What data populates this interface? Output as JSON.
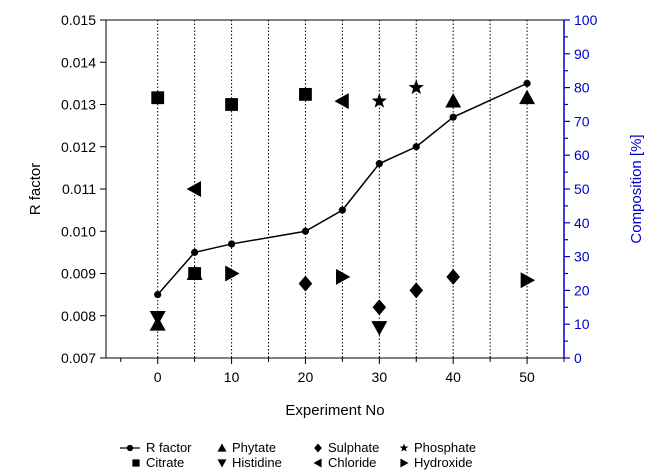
{
  "chart_data": {
    "type": "scatter",
    "xlabel": "Experiment No",
    "ylabel": "R factor",
    "y2label": "Composition [%]",
    "xlim": [
      -7,
      55
    ],
    "ylim": [
      0.007,
      0.015
    ],
    "y2lim": [
      0,
      100
    ],
    "x_ticks": [
      0,
      10,
      20,
      30,
      40,
      50
    ],
    "x_tick_labels": [
      "0",
      "10",
      "20",
      "30",
      "40",
      "50"
    ],
    "y_ticks": [
      0.007,
      0.008,
      0.009,
      0.01,
      0.011,
      0.012,
      0.013,
      0.014,
      0.015
    ],
    "y_tick_labels": [
      "0.007",
      "0.008",
      "0.009",
      "0.010",
      "0.011",
      "0.012",
      "0.013",
      "0.014",
      "0.015"
    ],
    "y2_ticks": [
      0,
      10,
      20,
      30,
      40,
      50,
      60,
      70,
      80,
      90,
      100
    ],
    "y2_tick_labels": [
      "0",
      "10",
      "20",
      "30",
      "40",
      "50",
      "60",
      "70",
      "80",
      "90",
      "100"
    ],
    "vertical_gridlines_x": [
      0,
      5,
      10,
      15,
      20,
      25,
      30,
      35,
      40,
      45,
      50
    ],
    "grid": "vertical dotted",
    "legend_position": "bottom",
    "right_axis_color": "#0000cc",
    "series": [
      {
        "name": "R factor",
        "axis": "left",
        "marker": "circle",
        "line": true,
        "x": [
          0,
          5,
          10,
          20,
          25,
          30,
          35,
          40,
          50
        ],
        "values": [
          0.0085,
          0.0095,
          0.0097,
          0.01,
          0.0105,
          0.0116,
          0.012,
          0.0127,
          0.0135
        ]
      },
      {
        "name": "Citrate",
        "axis": "right",
        "marker": "square",
        "x": [
          0,
          5,
          10,
          20
        ],
        "values": [
          77,
          25,
          75,
          78
        ]
      },
      {
        "name": "Phytate",
        "axis": "right",
        "marker": "triangle-up",
        "x": [
          0,
          5,
          40,
          50
        ],
        "values": [
          10,
          25,
          76,
          77
        ]
      },
      {
        "name": "Histidine",
        "axis": "right",
        "marker": "triangle-down",
        "x": [
          0,
          30
        ],
        "values": [
          12,
          9
        ]
      },
      {
        "name": "Sulphate",
        "axis": "right",
        "marker": "diamond",
        "x": [
          20,
          30,
          35,
          40
        ],
        "values": [
          22,
          15,
          20,
          24
        ]
      },
      {
        "name": "Chloride",
        "axis": "right",
        "marker": "triangle-left",
        "x": [
          5,
          25
        ],
        "values": [
          50,
          76
        ]
      },
      {
        "name": "Phosphate",
        "axis": "right",
        "marker": "star",
        "x": [
          30,
          35
        ],
        "values": [
          76,
          80
        ]
      },
      {
        "name": "Hydroxide",
        "axis": "right",
        "marker": "triangle-right",
        "x": [
          10,
          25,
          50
        ],
        "values": [
          25,
          24,
          23
        ]
      }
    ]
  }
}
